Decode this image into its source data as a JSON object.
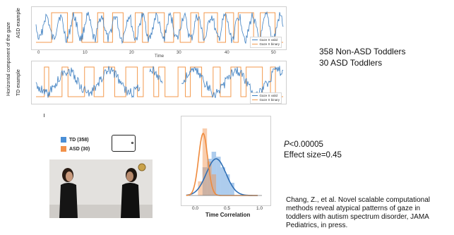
{
  "gaze_panels": {
    "y_axis_title": "Horizontal component of the gaze",
    "asd_label": "ASD example",
    "td_label": "TD example",
    "x_axis_label": "Time",
    "x_ticks": [
      "0",
      "10",
      "20",
      "30",
      "40",
      "50"
    ],
    "legend": [
      "Gaze X valid",
      "Gaze X binary"
    ],
    "colors": {
      "valid": "#3d7fc1",
      "binary": "#f39a4e"
    }
  },
  "counts": {
    "line1": "358 Non-ASD Toddlers",
    "line2": "30 ASD Toddlers"
  },
  "group_legend": {
    "td": "TD (358)",
    "asd": "ASD (30)",
    "td_color": "#4a8fd6",
    "asd_color": "#f2914a"
  },
  "distribution": {
    "xlabel": "Time Correlation",
    "x_ticks": [
      "0.0",
      "0.5",
      "1.0"
    ]
  },
  "stats": {
    "p_value_prefix": "P",
    "p_value_rest": "<0.00005",
    "effect": "Effect size=0.45"
  },
  "citation": {
    "line1": "Chang, Z., et al. Novel scalable computational",
    "line2": "methods reveal atypical patterns of gaze in",
    "line3": "toddlers with autism spectrum disorder, JAMA",
    "line4": "Pediatrics, in press."
  }
}
